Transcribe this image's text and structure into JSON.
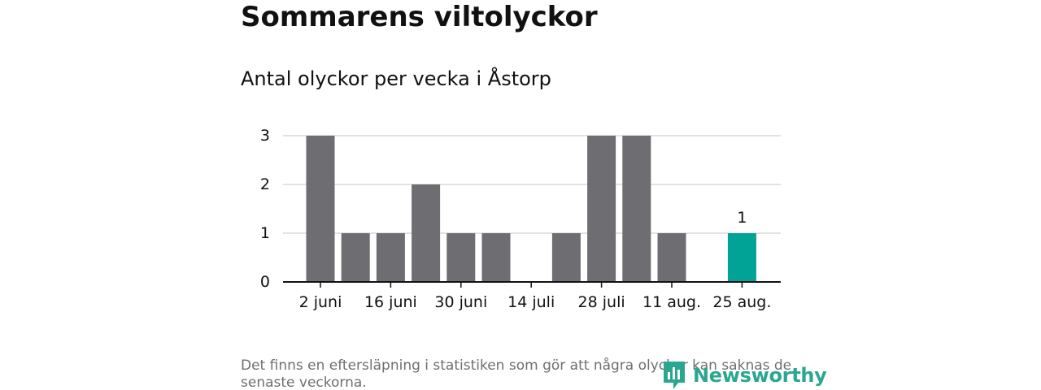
{
  "title": "Sommarens viltolyckor",
  "subtitle": "Antal olyckor per vecka i Åstorp",
  "footnote": "Det finns en eftersläpning i statistiken som gör att några olyckor kan saknas de senaste veckorna.",
  "logo": {
    "text": "Newsworthy"
  },
  "colors": {
    "bar": "#6e6d72",
    "highlight": "#00a396",
    "grid": "#d9d9d9",
    "axis": "#111111"
  },
  "chart_data": {
    "type": "bar",
    "title": "Antal olyckor per vecka i Åstorp",
    "xlabel": "",
    "ylabel": "",
    "ylim": [
      0,
      3
    ],
    "yticks": [
      0,
      1,
      2,
      3
    ],
    "grid": true,
    "x_tick_labels": [
      {
        "index": 0,
        "label": "2 juni"
      },
      {
        "index": 2,
        "label": "16 juni"
      },
      {
        "index": 4,
        "label": "30 juni"
      },
      {
        "index": 6,
        "label": "14 juli"
      },
      {
        "index": 8,
        "label": "28 juli"
      },
      {
        "index": 10,
        "label": "11 aug."
      },
      {
        "index": 12,
        "label": "25 aug."
      }
    ],
    "values": [
      3,
      1,
      1,
      2,
      1,
      1,
      0,
      1,
      3,
      3,
      1,
      0,
      1
    ],
    "highlight_index": 12,
    "data_labels": [
      {
        "index": 12,
        "label": "1"
      }
    ]
  }
}
